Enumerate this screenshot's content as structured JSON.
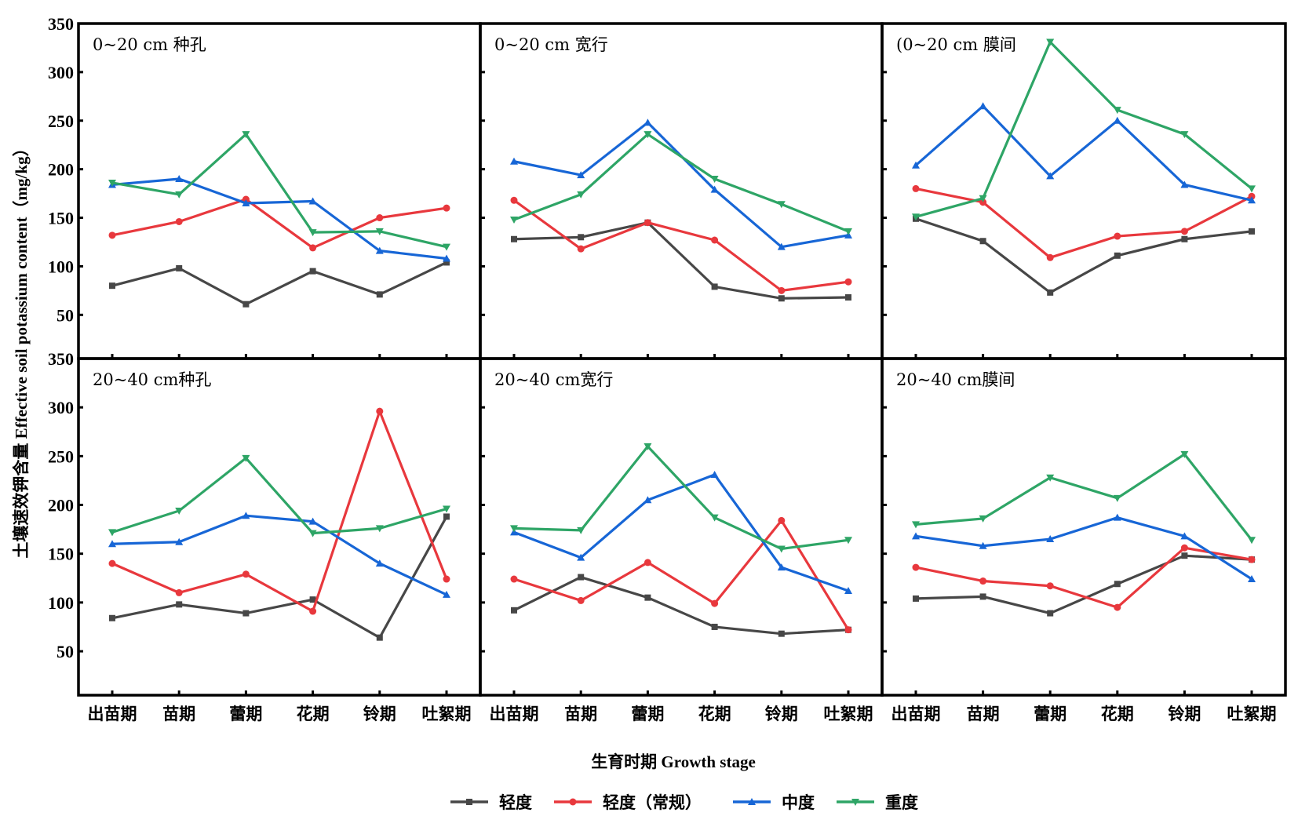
{
  "chart_data": {
    "type": "line",
    "layout": "2x3 grid of panels sharing axes",
    "ylabel": "土壤速效钾含量 Effective soil potassium content（mg/kg）",
    "xlabel": "生育时期  Growth stage",
    "ylim": [
      5,
      350
    ],
    "yticks": [
      50,
      100,
      150,
      200,
      250,
      300,
      350
    ],
    "categories": [
      "出苗期",
      "苗期",
      "蕾期",
      "花期",
      "铃期",
      "吐絮期"
    ],
    "grid": false,
    "legend_position": "bottom-center",
    "legend": [
      {
        "name": "轻度",
        "color": "#474747",
        "marker": "square"
      },
      {
        "name": "轻度（常规）",
        "color": "#e8383d",
        "marker": "circle"
      },
      {
        "name": "中度",
        "color": "#1766d6",
        "marker": "triangle-up"
      },
      {
        "name": "重度",
        "color": "#2ea566",
        "marker": "triangle-down"
      }
    ],
    "panels": [
      {
        "label": "0~20 cm  种孔",
        "series": [
          {
            "name": "轻度",
            "values": [
              80,
              98,
              61,
              95,
              71,
              104
            ]
          },
          {
            "name": "轻度（常规）",
            "values": [
              132,
              146,
              169,
              119,
              150,
              160
            ]
          },
          {
            "name": "中度",
            "values": [
              184,
              190,
              165,
              167,
              116,
              108
            ]
          },
          {
            "name": "重度",
            "values": [
              186,
              174,
              236,
              135,
              136,
              120
            ]
          }
        ]
      },
      {
        "label": "0~20 cm 宽行",
        "series": [
          {
            "name": "轻度",
            "values": [
              128,
              130,
              145,
              79,
              67,
              68
            ]
          },
          {
            "name": "轻度（常规）",
            "values": [
              168,
              118,
              145,
              127,
              75,
              84
            ]
          },
          {
            "name": "中度",
            "values": [
              208,
              194,
              248,
              179,
              120,
              132
            ]
          },
          {
            "name": "重度",
            "values": [
              148,
              174,
              236,
              190,
              164,
              136
            ]
          }
        ]
      },
      {
        "label": "(0~20 cm 膜间",
        "series": [
          {
            "name": "轻度",
            "values": [
              149,
              126,
              73,
              111,
              128,
              136
            ]
          },
          {
            "name": "轻度（常规）",
            "values": [
              180,
              166,
              109,
              131,
              136,
              172
            ]
          },
          {
            "name": "中度",
            "values": [
              204,
              265,
              193,
              250,
              184,
              168
            ]
          },
          {
            "name": "重度",
            "values": [
              151,
              170,
              331,
              261,
              236,
              180
            ]
          }
        ]
      },
      {
        "label": "20~40 cm种孔",
        "series": [
          {
            "name": "轻度",
            "values": [
              84,
              98,
              89,
              103,
              64,
              188
            ]
          },
          {
            "name": "轻度（常规）",
            "values": [
              140,
              110,
              129,
              91,
              296,
              124
            ]
          },
          {
            "name": "中度",
            "values": [
              160,
              162,
              189,
              183,
              140,
              108
            ]
          },
          {
            "name": "重度",
            "values": [
              172,
              194,
              248,
              171,
              176,
              196
            ]
          }
        ]
      },
      {
        "label": "20~40 cm宽行",
        "series": [
          {
            "name": "轻度",
            "values": [
              92,
              126,
              105,
              75,
              68,
              72
            ]
          },
          {
            "name": "轻度（常规）",
            "values": [
              124,
              102,
              141,
              99,
              184,
              72
            ]
          },
          {
            "name": "中度",
            "values": [
              172,
              146,
              205,
              231,
              136,
              112
            ]
          },
          {
            "name": "重度",
            "values": [
              176,
              174,
              260,
              187,
              155,
              164
            ]
          }
        ]
      },
      {
        "label": "20~40 cm膜间",
        "series": [
          {
            "name": "轻度",
            "values": [
              104,
              106,
              89,
              119,
              148,
              144
            ]
          },
          {
            "name": "轻度（常规）",
            "values": [
              136,
              122,
              117,
              95,
              156,
              144
            ]
          },
          {
            "name": "中度",
            "values": [
              168,
              158,
              165,
              187,
              168,
              124
            ]
          },
          {
            "name": "重度",
            "values": [
              180,
              186,
              228,
              207,
              252,
              164
            ]
          }
        ]
      }
    ]
  }
}
